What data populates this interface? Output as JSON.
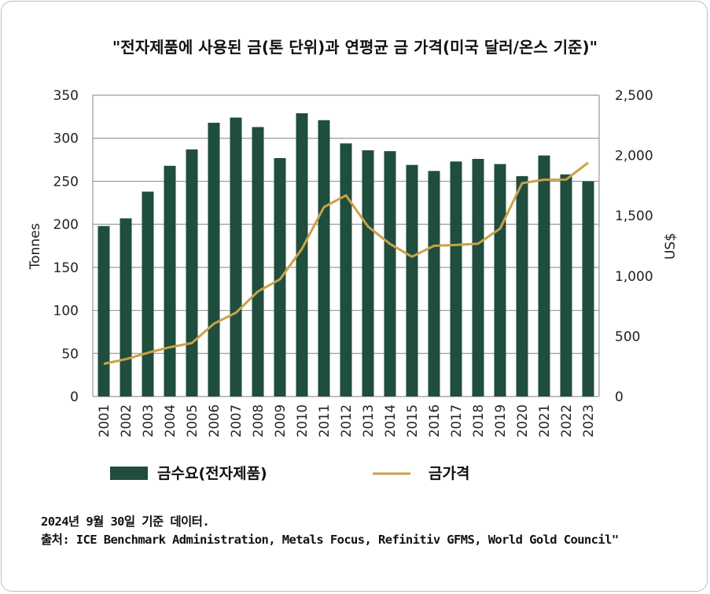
{
  "chart_data": {
    "type": "bar+line",
    "title": "\"전자제품에 사용된 금(톤 단위)과 연평균 금 가격(미국 달러/온스 기준)\"",
    "categories": [
      "2001",
      "2002",
      "2003",
      "2004",
      "2005",
      "2006",
      "2007",
      "2008",
      "2009",
      "2010",
      "2011",
      "2012",
      "2013",
      "2014",
      "2015",
      "2016",
      "2017",
      "2018",
      "2019",
      "2020",
      "2021",
      "2022",
      "2023"
    ],
    "series": [
      {
        "name": "금수요(전자제품)",
        "type": "bar",
        "axis": "left",
        "color": "#1f4d3e",
        "values": [
          198,
          207,
          238,
          268,
          287,
          318,
          324,
          313,
          277,
          329,
          321,
          294,
          286,
          285,
          269,
          262,
          273,
          276,
          270,
          256,
          280,
          258,
          250
        ]
      },
      {
        "name": "금가격",
        "type": "line",
        "axis": "right",
        "color": "#c9a14a",
        "values": [
          271,
          310,
          363,
          409,
          444,
          604,
          695,
          872,
          972,
          1225,
          1572,
          1669,
          1411,
          1266,
          1160,
          1251,
          1257,
          1268,
          1393,
          1770,
          1799,
          1800,
          1941
        ]
      }
    ],
    "ylabel_left": "Tonnes",
    "ylabel_right": "US$",
    "ylim_left": [
      0,
      350
    ],
    "ylim_right": [
      0,
      2500
    ],
    "yticks_left": [
      "0",
      "50",
      "100",
      "150",
      "200",
      "250",
      "300",
      "350"
    ],
    "yticks_right": [
      "0",
      "500",
      "1,000",
      "1,500",
      "2,000",
      "2,500"
    ],
    "grid": true,
    "legend_position": "bottom"
  },
  "footer": {
    "line1": "2024년 9월 30일 기준 데이터.",
    "line2": "출처: ICE Benchmark Administration, Metals Focus, Refinitiv GFMS, World Gold Council\""
  }
}
